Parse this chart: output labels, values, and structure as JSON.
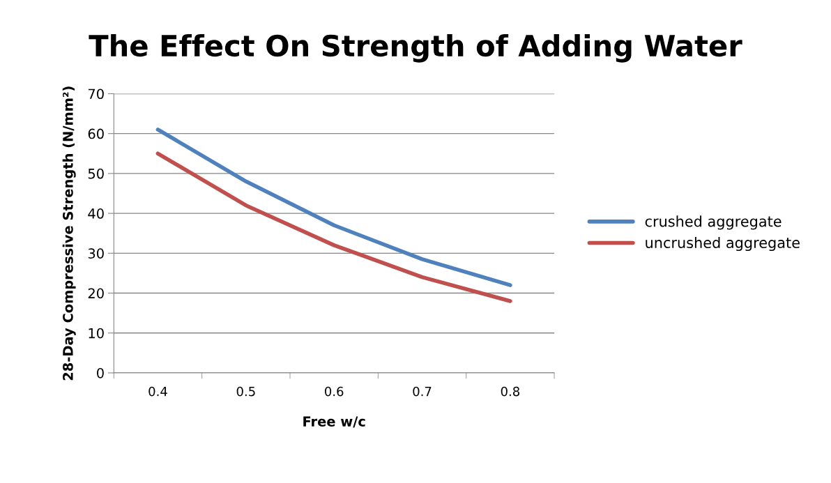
{
  "chart_data": {
    "type": "line",
    "title": "The Effect On Strength of Adding Water",
    "xlabel": "Free w/c",
    "ylabel": "28-Day Compressive Strength (N/mm²)",
    "categories": [
      "0.4",
      "0.5",
      "0.6",
      "0.7",
      "0.8"
    ],
    "series": [
      {
        "name": "crushed aggregate",
        "color": "#4f81bd",
        "values": [
          61,
          48,
          37,
          28.5,
          22
        ]
      },
      {
        "name": "uncrushed aggregate",
        "color": "#c0504d",
        "values": [
          55,
          42,
          32,
          24,
          18
        ]
      }
    ],
    "ylim": [
      0,
      70
    ],
    "yticks": [
      0,
      10,
      20,
      30,
      40,
      50,
      60,
      70
    ],
    "grid": "y",
    "legend": "right",
    "marker": "none",
    "line_style": "solid"
  }
}
